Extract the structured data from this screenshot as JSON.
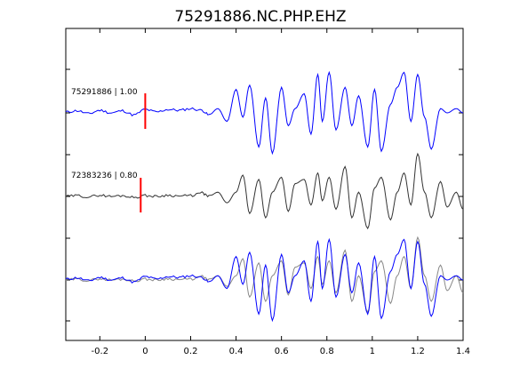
{
  "chart_data": {
    "type": "line",
    "title": "75291886.NC.PHP.EHZ",
    "xlabel": "",
    "ylabel": "",
    "xlim": [
      -0.35,
      1.4
    ],
    "x_ticks": [
      -0.2,
      0,
      0.2,
      0.4,
      0.6,
      0.8,
      1,
      1.2,
      1.4
    ],
    "x_tick_labels": [
      "-0.2",
      "0",
      "0.2",
      "0.4",
      "0.6",
      "0.8",
      "1",
      "1.2",
      "1.4"
    ],
    "grid": false,
    "colors": {
      "template": "#0000ff",
      "neighbor": "#333333",
      "overlay": "#888888",
      "pick": "#ff0000"
    },
    "traces": [
      {
        "label": "75291886 | 1.00",
        "event_id": "75291886",
        "correlation": 1.0,
        "color": "#0000ff",
        "pick_time": 0.0,
        "x": [
          -0.35,
          -0.3,
          -0.25,
          -0.2,
          -0.15,
          -0.1,
          -0.05,
          0.0,
          0.05,
          0.1,
          0.15,
          0.2,
          0.25,
          0.28,
          0.32,
          0.36,
          0.4,
          0.43,
          0.46,
          0.5,
          0.53,
          0.56,
          0.6,
          0.63,
          0.66,
          0.7,
          0.73,
          0.76,
          0.78,
          0.81,
          0.84,
          0.88,
          0.91,
          0.94,
          0.98,
          1.01,
          1.04,
          1.08,
          1.11,
          1.14,
          1.17,
          1.2,
          1.23,
          1.26,
          1.3,
          1.33,
          1.37,
          1.4
        ],
        "y": [
          0.02,
          0.05,
          -0.02,
          0.06,
          0.0,
          0.05,
          -0.05,
          0.08,
          0.02,
          0.08,
          0.06,
          0.1,
          0.06,
          -0.05,
          0.1,
          -0.2,
          0.55,
          -0.1,
          0.65,
          -0.8,
          0.35,
          -0.95,
          0.6,
          -0.3,
          0.1,
          0.45,
          -0.5,
          0.9,
          -0.2,
          0.95,
          -0.4,
          0.6,
          -0.3,
          0.4,
          -0.8,
          0.55,
          -0.9,
          0.2,
          0.6,
          0.95,
          -0.2,
          0.9,
          -0.1,
          -0.85,
          0.1,
          0.0,
          0.1,
          0.0
        ]
      },
      {
        "label": "72383236 | 0.80",
        "event_id": "72383236",
        "correlation": 0.8,
        "color": "#333333",
        "pick_time": -0.02,
        "x": [
          -0.35,
          -0.3,
          -0.25,
          -0.2,
          -0.15,
          -0.1,
          -0.05,
          0.0,
          0.05,
          0.1,
          0.15,
          0.2,
          0.25,
          0.28,
          0.32,
          0.36,
          0.4,
          0.43,
          0.46,
          0.5,
          0.53,
          0.56,
          0.6,
          0.63,
          0.66,
          0.7,
          0.73,
          0.76,
          0.78,
          0.81,
          0.84,
          0.88,
          0.91,
          0.94,
          0.98,
          1.01,
          1.04,
          1.08,
          1.11,
          1.14,
          1.17,
          1.2,
          1.23,
          1.26,
          1.3,
          1.33,
          1.37,
          1.4
        ],
        "y": [
          0.0,
          0.02,
          -0.01,
          0.03,
          0.0,
          0.02,
          -0.02,
          0.02,
          0.0,
          0.03,
          0.01,
          0.02,
          0.08,
          0.0,
          0.1,
          -0.15,
          0.1,
          0.5,
          -0.4,
          0.4,
          -0.5,
          0.1,
          0.45,
          -0.35,
          0.3,
          0.4,
          -0.2,
          0.55,
          -0.1,
          0.45,
          -0.3,
          0.7,
          -0.5,
          0.1,
          -0.75,
          0.2,
          0.45,
          -0.55,
          0.1,
          0.55,
          -0.2,
          1.0,
          0.1,
          -0.5,
          0.35,
          -0.25,
          0.1,
          -0.3
        ]
      }
    ],
    "overlay": {
      "note": "bottom panel overlays trace 1 (blue) and trace 2 (gray) aligned",
      "series": [
        "75291886",
        "72383236"
      ]
    }
  }
}
